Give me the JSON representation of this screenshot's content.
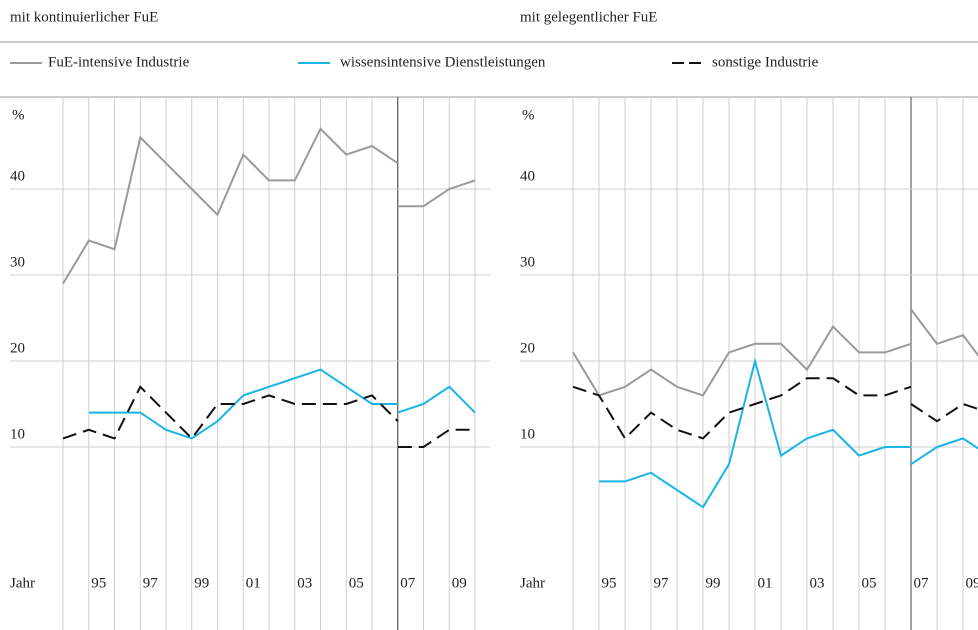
{
  "chart_data": [
    {
      "type": "line",
      "title": "mit kontinuierlicher FuE",
      "y_unit": "%",
      "x_label": "Jahr",
      "x": [
        1994,
        1995,
        1996,
        1997,
        1998,
        1999,
        2000,
        2001,
        2002,
        2003,
        2004,
        2005,
        2006,
        2007,
        null,
        2007,
        2008,
        2009,
        2010
      ],
      "xticks": [
        {
          "value": 1995,
          "label": "95"
        },
        {
          "value": 1997,
          "label": "97"
        },
        {
          "value": 1999,
          "label": "99"
        },
        {
          "value": 2001,
          "label": "01"
        },
        {
          "value": 2003,
          "label": "03"
        },
        {
          "value": 2005,
          "label": "05"
        },
        {
          "value": 2007,
          "label": "07"
        },
        {
          "value": 2009,
          "label": "09"
        }
      ],
      "ylim": [
        0,
        50
      ],
      "yticks": [
        10,
        20,
        30,
        40
      ],
      "grid": true,
      "series": [
        {
          "name": "FuE-intensive Industrie",
          "color": "#9a9a9a",
          "dash": false,
          "values": [
            29,
            34,
            33,
            46,
            43,
            40,
            37,
            44,
            41,
            41,
            47,
            44,
            45,
            43,
            null,
            38,
            38,
            40,
            41
          ]
        },
        {
          "name": "wissensintensive Dienstleistungen",
          "color": "#1ab4e6",
          "dash": false,
          "values": [
            null,
            14,
            14,
            14,
            12,
            11,
            13,
            16,
            17,
            18,
            19,
            17,
            15,
            15,
            null,
            14,
            15,
            17,
            14
          ]
        },
        {
          "name": "sonstige Industrie",
          "color": "#111111",
          "dash": true,
          "values": [
            11,
            12,
            11,
            17,
            14,
            11,
            15,
            15,
            16,
            15,
            15,
            15,
            16,
            13,
            null,
            10,
            10,
            12,
            12
          ]
        }
      ]
    },
    {
      "type": "line",
      "title": "mit gelegentlicher FuE",
      "y_unit": "%",
      "x_label": "Jahr",
      "x": [
        1994,
        1995,
        1996,
        1997,
        1998,
        1999,
        2000,
        2001,
        2002,
        2003,
        2004,
        2005,
        2006,
        2007,
        null,
        2007,
        2008,
        2009,
        2010
      ],
      "xticks": [
        {
          "value": 1995,
          "label": "95"
        },
        {
          "value": 1997,
          "label": "97"
        },
        {
          "value": 1999,
          "label": "99"
        },
        {
          "value": 2001,
          "label": "01"
        },
        {
          "value": 2003,
          "label": "03"
        },
        {
          "value": 2005,
          "label": "05"
        },
        {
          "value": 2007,
          "label": "07"
        },
        {
          "value": 2009,
          "label": "09"
        }
      ],
      "ylim": [
        0,
        50
      ],
      "yticks": [
        10,
        20,
        30,
        40
      ],
      "grid": true,
      "series": [
        {
          "name": "FuE-intensive Industrie",
          "color": "#9a9a9a",
          "dash": false,
          "values": [
            21,
            16,
            17,
            19,
            17,
            16,
            21,
            22,
            22,
            19,
            24,
            21,
            21,
            22,
            null,
            26,
            22,
            23,
            19
          ]
        },
        {
          "name": "wissensintensive Dienstleistungen",
          "color": "#1ab4e6",
          "dash": false,
          "values": [
            null,
            6,
            6,
            7,
            5,
            3,
            8,
            20,
            9,
            11,
            12,
            9,
            10,
            10,
            null,
            8,
            10,
            11,
            9
          ]
        },
        {
          "name": "sonstige Industrie",
          "color": "#111111",
          "dash": true,
          "values": [
            17,
            16,
            11,
            14,
            12,
            11,
            14,
            15,
            16,
            18,
            18,
            16,
            16,
            17,
            null,
            15,
            13,
            15,
            14
          ]
        }
      ]
    }
  ]
}
